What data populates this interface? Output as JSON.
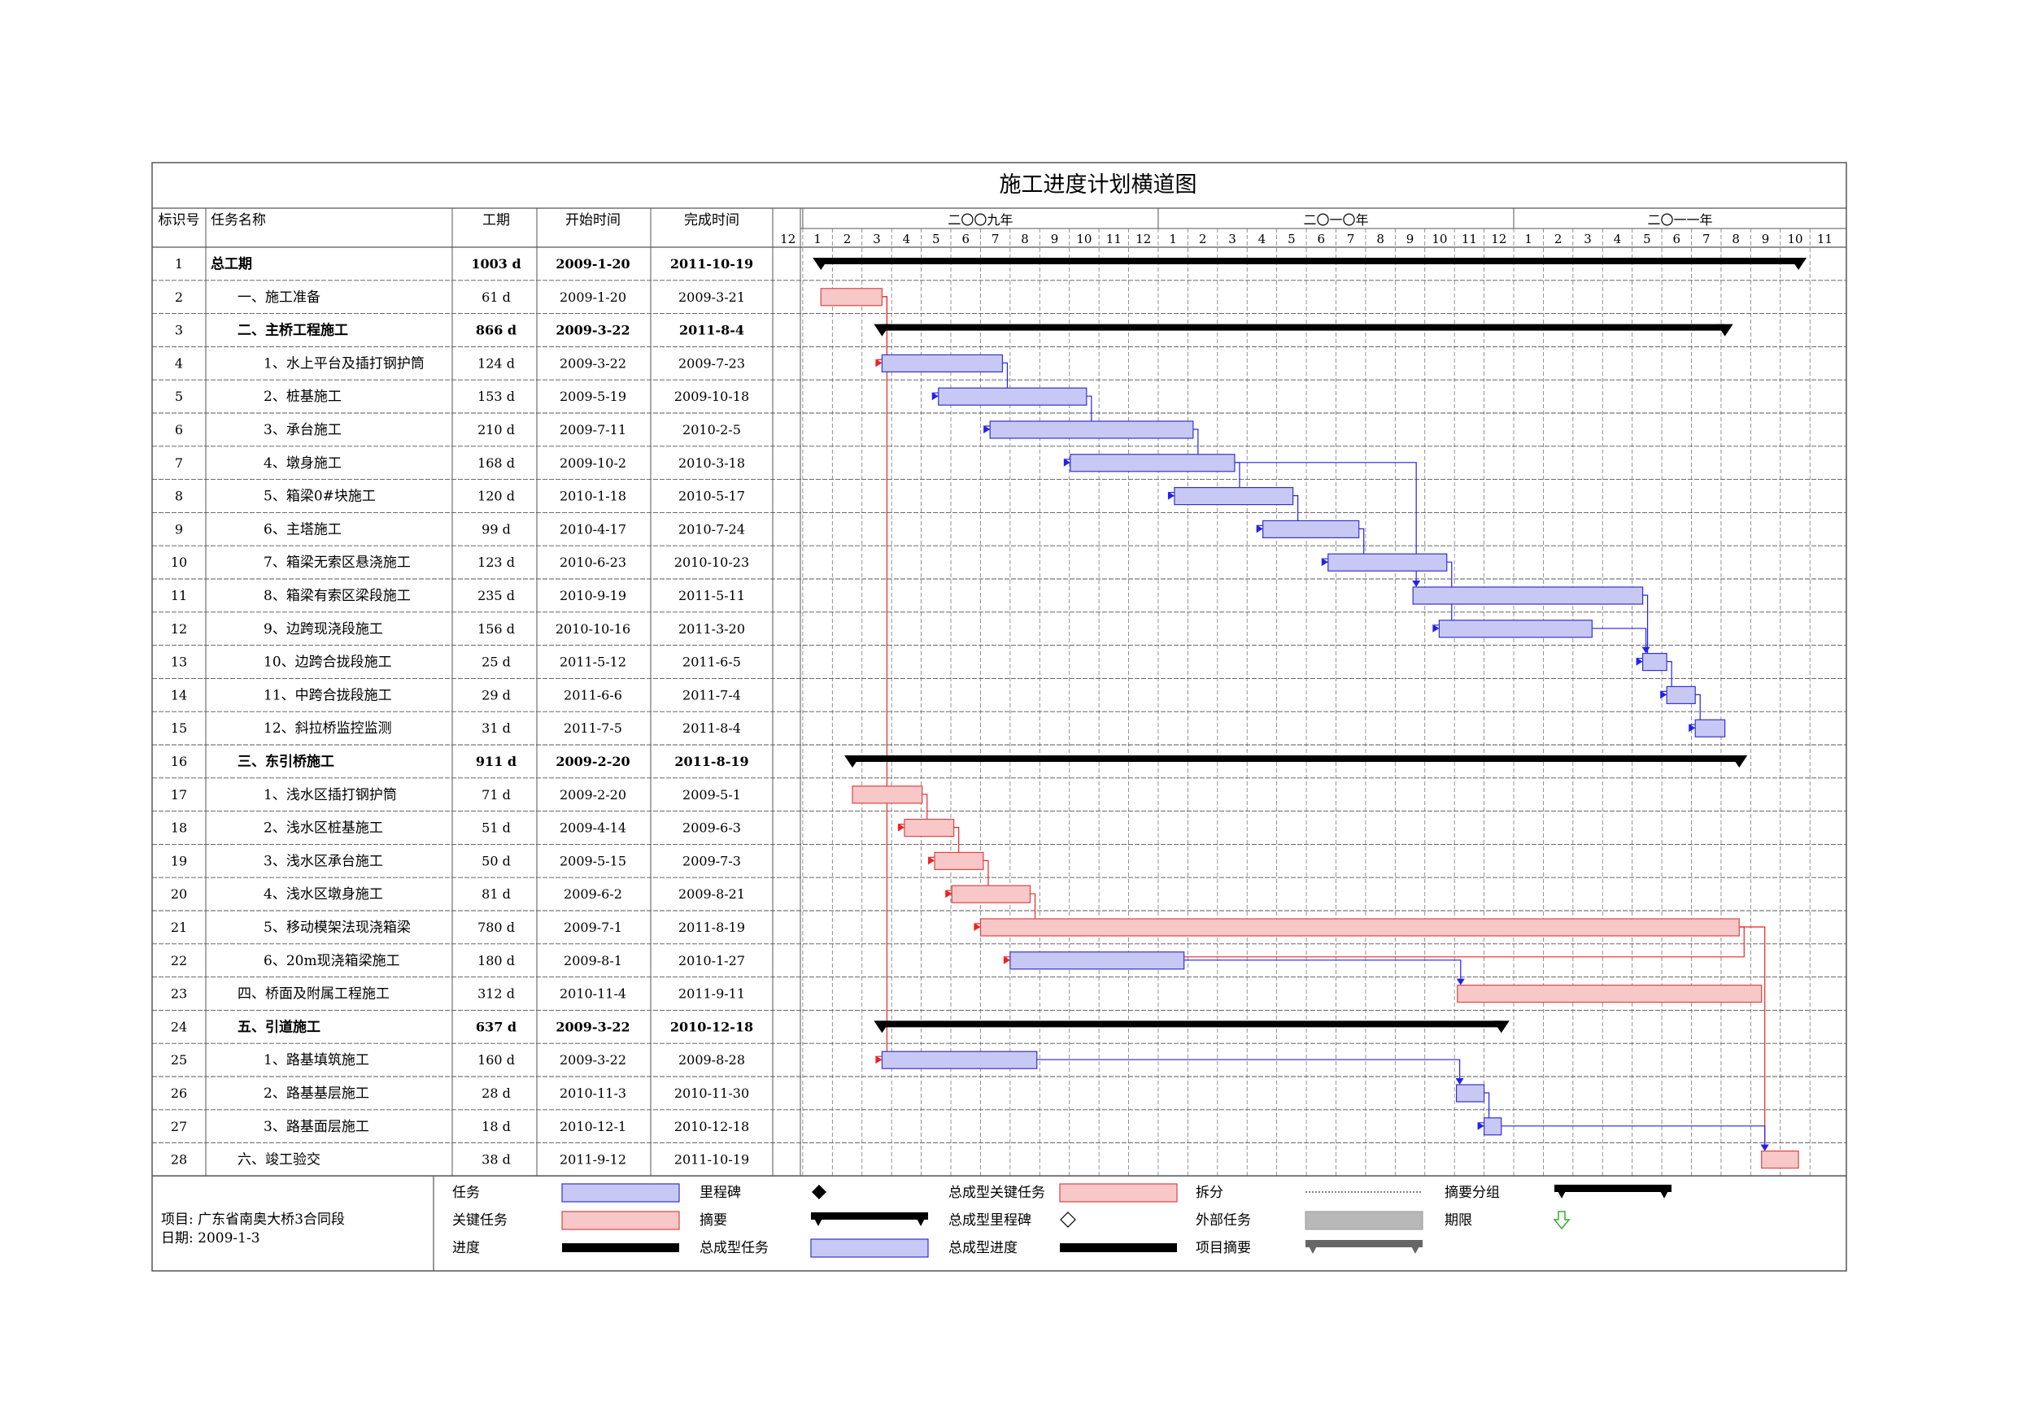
{
  "title": "施工进度计划横道图",
  "columns": {
    "id": "标识号",
    "name": "任务名称",
    "duration": "工期",
    "start": "开始时间",
    "finish": "完成时间"
  },
  "timescale": {
    "years": [
      "二〇〇九年",
      "二〇一〇年",
      "二〇一一年"
    ],
    "months": [
      "12",
      "1",
      "2",
      "3",
      "4",
      "5",
      "6",
      "7",
      "8",
      "9",
      "10",
      "11",
      "12",
      "1",
      "2",
      "3",
      "4",
      "5",
      "6",
      "7",
      "8",
      "9",
      "10",
      "11",
      "12",
      "1",
      "2",
      "3",
      "4",
      "5",
      "6",
      "7",
      "8",
      "9",
      "10",
      "11"
    ]
  },
  "chart_data": {
    "type": "gantt",
    "x_range": [
      "2008-12-01",
      "2011-12-01"
    ],
    "tasks": [
      {
        "id": "1",
        "name": "总工期",
        "duration": "1003 d",
        "start": "2009-1-20",
        "finish": "2011-10-19",
        "level": 0,
        "kind": "summary",
        "bold": true
      },
      {
        "id": "2",
        "name": "一、施工准备",
        "duration": "61 d",
        "start": "2009-1-20",
        "finish": "2009-3-21",
        "level": 1,
        "kind": "critical",
        "bold": false
      },
      {
        "id": "3",
        "name": "二、主桥工程施工",
        "duration": "866 d",
        "start": "2009-3-22",
        "finish": "2011-8-4",
        "level": 1,
        "kind": "summary",
        "bold": true
      },
      {
        "id": "4",
        "name": "1、水上平台及插打钢护筒",
        "duration": "124 d",
        "start": "2009-3-22",
        "finish": "2009-7-23",
        "level": 2,
        "kind": "task",
        "bold": false
      },
      {
        "id": "5",
        "name": "2、桩基施工",
        "duration": "153 d",
        "start": "2009-5-19",
        "finish": "2009-10-18",
        "level": 2,
        "kind": "task",
        "bold": false
      },
      {
        "id": "6",
        "name": "3、承台施工",
        "duration": "210 d",
        "start": "2009-7-11",
        "finish": "2010-2-5",
        "level": 2,
        "kind": "task",
        "bold": false
      },
      {
        "id": "7",
        "name": "4、墩身施工",
        "duration": "168 d",
        "start": "2009-10-2",
        "finish": "2010-3-18",
        "level": 2,
        "kind": "task",
        "bold": false
      },
      {
        "id": "8",
        "name": "5、箱梁0#块施工",
        "duration": "120 d",
        "start": "2010-1-18",
        "finish": "2010-5-17",
        "level": 2,
        "kind": "task",
        "bold": false
      },
      {
        "id": "9",
        "name": "6、主塔施工",
        "duration": "99 d",
        "start": "2010-4-17",
        "finish": "2010-7-24",
        "level": 2,
        "kind": "task",
        "bold": false
      },
      {
        "id": "10",
        "name": "7、箱梁无索区悬浇施工",
        "duration": "123 d",
        "start": "2010-6-23",
        "finish": "2010-10-23",
        "level": 2,
        "kind": "task",
        "bold": false
      },
      {
        "id": "11",
        "name": "8、箱梁有索区梁段施工",
        "duration": "235 d",
        "start": "2010-9-19",
        "finish": "2011-5-11",
        "level": 2,
        "kind": "task",
        "bold": false
      },
      {
        "id": "12",
        "name": "9、边跨现浇段施工",
        "duration": "156 d",
        "start": "2010-10-16",
        "finish": "2011-3-20",
        "level": 2,
        "kind": "task",
        "bold": false
      },
      {
        "id": "13",
        "name": "10、边跨合拢段施工",
        "duration": "25 d",
        "start": "2011-5-12",
        "finish": "2011-6-5",
        "level": 2,
        "kind": "task",
        "bold": false
      },
      {
        "id": "14",
        "name": "11、中跨合拢段施工",
        "duration": "29 d",
        "start": "2011-6-6",
        "finish": "2011-7-4",
        "level": 2,
        "kind": "task",
        "bold": false
      },
      {
        "id": "15",
        "name": "12、斜拉桥监控监测",
        "duration": "31 d",
        "start": "2011-7-5",
        "finish": "2011-8-4",
        "level": 2,
        "kind": "task",
        "bold": false
      },
      {
        "id": "16",
        "name": "三、东引桥施工",
        "duration": "911 d",
        "start": "2009-2-20",
        "finish": "2011-8-19",
        "level": 1,
        "kind": "summary",
        "bold": true
      },
      {
        "id": "17",
        "name": "1、浅水区插打钢护筒",
        "duration": "71 d",
        "start": "2009-2-20",
        "finish": "2009-5-1",
        "level": 2,
        "kind": "critical",
        "bold": false
      },
      {
        "id": "18",
        "name": "2、浅水区桩基施工",
        "duration": "51 d",
        "start": "2009-4-14",
        "finish": "2009-6-3",
        "level": 2,
        "kind": "critical",
        "bold": false
      },
      {
        "id": "19",
        "name": "3、浅水区承台施工",
        "duration": "50 d",
        "start": "2009-5-15",
        "finish": "2009-7-3",
        "level": 2,
        "kind": "critical",
        "bold": false
      },
      {
        "id": "20",
        "name": "4、浅水区墩身施工",
        "duration": "81 d",
        "start": "2009-6-2",
        "finish": "2009-8-21",
        "level": 2,
        "kind": "critical",
        "bold": false
      },
      {
        "id": "21",
        "name": "5、移动模架法现浇箱梁",
        "duration": "780 d",
        "start": "2009-7-1",
        "finish": "2011-8-19",
        "level": 2,
        "kind": "critical",
        "bold": false
      },
      {
        "id": "22",
        "name": "6、20m现浇箱梁施工",
        "duration": "180 d",
        "start": "2009-8-1",
        "finish": "2010-1-27",
        "level": 2,
        "kind": "task",
        "bold": false
      },
      {
        "id": "23",
        "name": "四、桥面及附属工程施工",
        "duration": "312 d",
        "start": "2010-11-4",
        "finish": "2011-9-11",
        "level": 1,
        "kind": "critical",
        "bold": false
      },
      {
        "id": "24",
        "name": "五、引道施工",
        "duration": "637 d",
        "start": "2009-3-22",
        "finish": "2010-12-18",
        "level": 1,
        "kind": "summary",
        "bold": true
      },
      {
        "id": "25",
        "name": "1、路基填筑施工",
        "duration": "160 d",
        "start": "2009-3-22",
        "finish": "2009-8-28",
        "level": 2,
        "kind": "task",
        "bold": false
      },
      {
        "id": "26",
        "name": "2、路基基层施工",
        "duration": "28 d",
        "start": "2010-11-3",
        "finish": "2010-11-30",
        "level": 2,
        "kind": "task",
        "bold": false
      },
      {
        "id": "27",
        "name": "3、路基面层施工",
        "duration": "18 d",
        "start": "2010-12-1",
        "finish": "2010-12-18",
        "level": 2,
        "kind": "task",
        "bold": false
      },
      {
        "id": "28",
        "name": "六、竣工验交",
        "duration": "38 d",
        "start": "2011-9-12",
        "finish": "2011-10-19",
        "level": 1,
        "kind": "critical",
        "bold": false
      }
    ],
    "links": [
      {
        "from": "2",
        "to": "4",
        "critical": true
      },
      {
        "from": "2",
        "to": "25",
        "critical": true
      },
      {
        "from": "4",
        "to": "5",
        "critical": false
      },
      {
        "from": "5",
        "to": "6",
        "critical": false
      },
      {
        "from": "6",
        "to": "7",
        "critical": false
      },
      {
        "from": "7",
        "to": "8",
        "critical": false
      },
      {
        "from": "7",
        "to": "11",
        "critical": false
      },
      {
        "from": "8",
        "to": "9",
        "critical": false
      },
      {
        "from": "9",
        "to": "10",
        "critical": false
      },
      {
        "from": "10",
        "to": "12",
        "critical": false
      },
      {
        "from": "11",
        "to": "13",
        "critical": false
      },
      {
        "from": "12",
        "to": "13",
        "critical": false
      },
      {
        "from": "13",
        "to": "14",
        "critical": false
      },
      {
        "from": "14",
        "to": "15",
        "critical": false
      },
      {
        "from": "17",
        "to": "18",
        "critical": true
      },
      {
        "from": "18",
        "to": "19",
        "critical": true
      },
      {
        "from": "19",
        "to": "20",
        "critical": true
      },
      {
        "from": "20",
        "to": "21",
        "critical": true
      },
      {
        "from": "21",
        "to": "22",
        "critical": true
      },
      {
        "from": "21",
        "to": "28",
        "critical": true
      },
      {
        "from": "22",
        "to": "23",
        "critical": false
      },
      {
        "from": "25",
        "to": "26",
        "critical": false
      },
      {
        "from": "26",
        "to": "27",
        "critical": false
      },
      {
        "from": "27",
        "to": "28",
        "critical": false
      }
    ]
  },
  "footer": {
    "project": "项目: 广东省南奥大桥3合同段",
    "date": "日期: 2009-1-3"
  },
  "legend": [
    {
      "label": "任务",
      "symbol": "task"
    },
    {
      "label": "关键任务",
      "symbol": "critical"
    },
    {
      "label": "进度",
      "symbol": "progress"
    },
    {
      "label": "里程碑",
      "symbol": "milestone"
    },
    {
      "label": "摘要",
      "symbol": "summary"
    },
    {
      "label": "总成型任务",
      "symbol": "rollup-task"
    },
    {
      "label": "总成型关键任务",
      "symbol": "rollup-critical"
    },
    {
      "label": "总成型里程碑",
      "symbol": "rollup-milestone"
    },
    {
      "label": "总成型进度",
      "symbol": "rollup-progress"
    },
    {
      "label": "拆分",
      "symbol": "split"
    },
    {
      "label": "外部任务",
      "symbol": "external"
    },
    {
      "label": "项目摘要",
      "symbol": "project-summary"
    },
    {
      "label": "摘要分组",
      "symbol": "group-summary"
    },
    {
      "label": "期限",
      "symbol": "deadline"
    }
  ],
  "colors": {
    "task_fill": "#c8c8f5",
    "task_stroke": "#3333cc",
    "critical_fill": "#f8c8c8",
    "critical_stroke": "#dd4444",
    "summary": "#000000",
    "link_blue": "#2222ee",
    "link_red": "#ee2222",
    "deadline": "#33aa33"
  }
}
